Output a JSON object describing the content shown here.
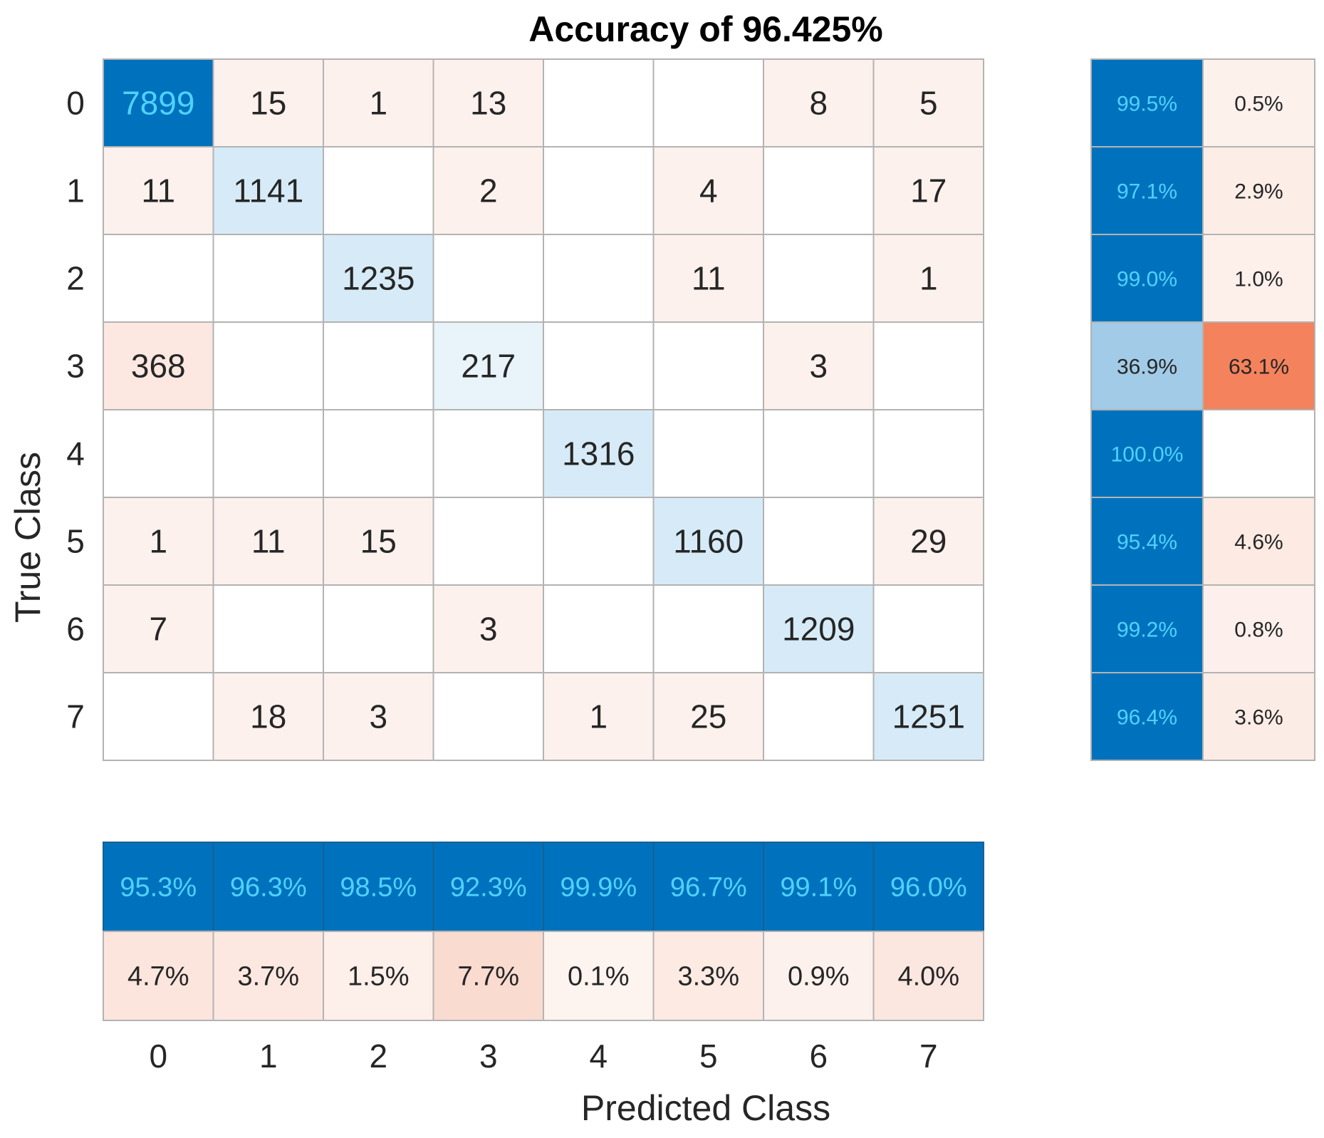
{
  "chart_data": {
    "type": "heatmap",
    "title": "Accuracy of 96.425%",
    "xlabel": "Predicted Class",
    "ylabel": "True Class",
    "classes": [
      "0",
      "1",
      "2",
      "3",
      "4",
      "5",
      "6",
      "7"
    ],
    "matrix": [
      [
        7899,
        15,
        1,
        13,
        null,
        null,
        8,
        5
      ],
      [
        11,
        1141,
        null,
        2,
        null,
        4,
        null,
        17
      ],
      [
        null,
        null,
        1235,
        null,
        null,
        11,
        null,
        1
      ],
      [
        368,
        null,
        null,
        217,
        null,
        null,
        3,
        null
      ],
      [
        null,
        null,
        null,
        null,
        1316,
        null,
        null,
        null
      ],
      [
        1,
        11,
        15,
        null,
        null,
        1160,
        null,
        29
      ],
      [
        7,
        null,
        null,
        3,
        null,
        null,
        1209,
        null
      ],
      [
        null,
        18,
        3,
        null,
        1,
        25,
        null,
        1251
      ]
    ],
    "row_summary": {
      "correct": [
        "99.5%",
        "97.1%",
        "99.0%",
        "36.9%",
        "100.0%",
        "95.4%",
        "99.2%",
        "96.4%"
      ],
      "incorrect": [
        "0.5%",
        "2.9%",
        "1.0%",
        "63.1%",
        "",
        "4.6%",
        "0.8%",
        "3.6%"
      ]
    },
    "column_summary": {
      "correct": [
        "95.3%",
        "96.3%",
        "98.5%",
        "92.3%",
        "99.9%",
        "96.7%",
        "99.1%",
        "96.0%"
      ],
      "incorrect": [
        "4.7%",
        "3.7%",
        "1.5%",
        "7.7%",
        "0.1%",
        "3.3%",
        "0.9%",
        "4.0%"
      ]
    },
    "colors": {
      "correct_dark": "#0072bd",
      "correct_light": "#d6ebf7",
      "incorrect_light": "#fdf1ed",
      "incorrect_dark": "#f4825c",
      "grid": "#b3b3b3",
      "dark_text": "#4fd2ff"
    }
  }
}
